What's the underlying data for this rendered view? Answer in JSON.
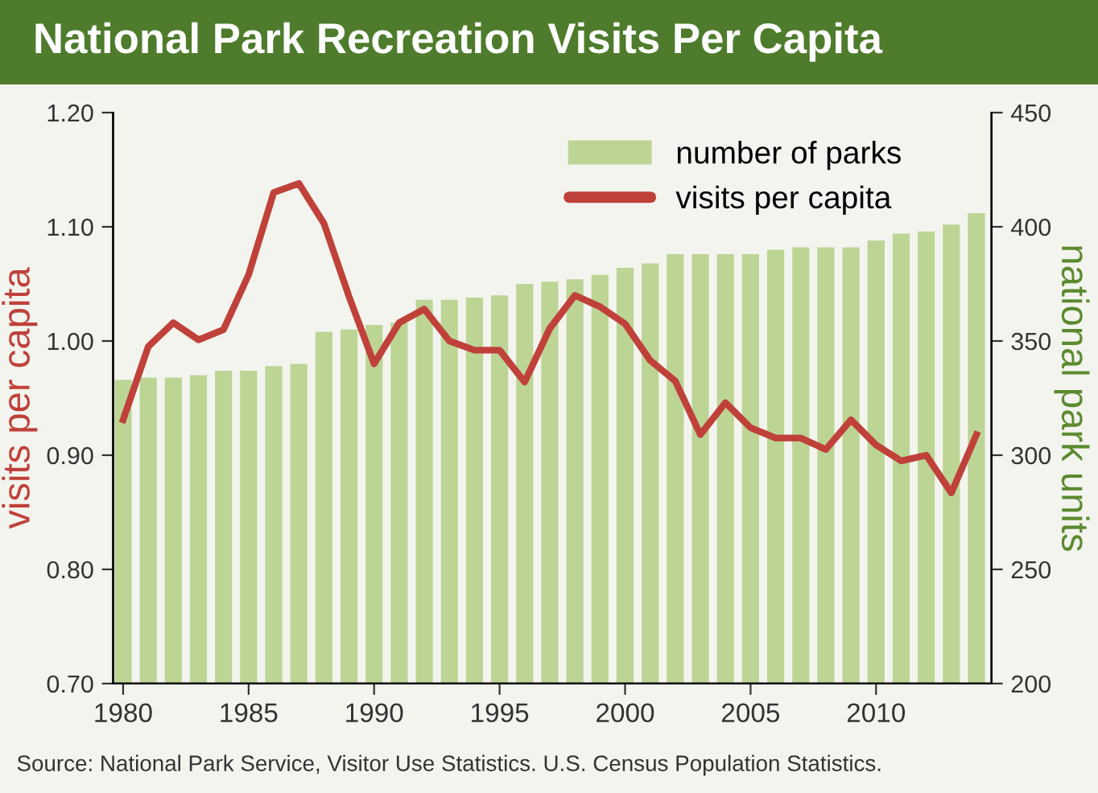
{
  "chart_data": {
    "type": "bar",
    "title": "National Park Recreation Visits Per Capita",
    "ylabel": "visits per capita",
    "y2label": "national park units",
    "x": [
      1980,
      1981,
      1982,
      1983,
      1984,
      1985,
      1986,
      1987,
      1988,
      1989,
      1990,
      1991,
      1992,
      1993,
      1994,
      1995,
      1996,
      1997,
      1998,
      1999,
      2000,
      2001,
      2002,
      2003,
      2004,
      2005,
      2006,
      2007,
      2008,
      2009,
      2010,
      2011,
      2012,
      2013,
      2014
    ],
    "series": [
      {
        "name": "number of parks",
        "axis": "y2",
        "color": "#bcd595",
        "values": [
          333,
          334,
          334,
          335,
          337,
          337,
          339,
          340,
          354,
          355,
          357,
          358,
          368,
          368,
          369,
          370,
          375,
          376,
          377,
          379,
          382,
          384,
          388,
          388,
          388,
          388,
          390,
          391,
          391,
          391,
          394,
          397,
          398,
          401,
          406
        ]
      },
      {
        "name": "visits per capita",
        "type": "line",
        "color": "#c0413a",
        "values": [
          0.931,
          0.995,
          1.016,
          1.001,
          1.01,
          1.058,
          1.13,
          1.138,
          1.103,
          1.039,
          0.98,
          1.016,
          1.028,
          1.0,
          0.992,
          0.992,
          0.964,
          1.011,
          1.04,
          1.03,
          1.015,
          0.983,
          0.965,
          0.918,
          0.946,
          0.924,
          0.915,
          0.915,
          0.905,
          0.931,
          0.909,
          0.895,
          0.9,
          0.867,
          0.918
        ]
      }
    ],
    "xlim": [
      1979.6,
      2014.6
    ],
    "xticks": [
      1980,
      1985,
      1990,
      1995,
      2000,
      2005,
      2010
    ],
    "ylim": [
      0.7,
      1.2
    ],
    "yticks": [
      {
        "value": 0.7,
        "label": "0.70"
      },
      {
        "value": 0.8,
        "label": "0.80"
      },
      {
        "value": 0.9,
        "label": "0.90"
      },
      {
        "value": 1.0,
        "label": "1.00"
      },
      {
        "value": 1.1,
        "label": "1.10"
      },
      {
        "value": 1.2,
        "label": "1.20"
      }
    ],
    "y2lim": [
      200,
      450
    ],
    "y2ticks": [
      200,
      250,
      300,
      350,
      400,
      450
    ],
    "grid": false,
    "legend": "top right",
    "marker": "none",
    "line_style": "solid",
    "annotations": [
      "Source: National Park Service, Visitor Use Statistics. U.S. Census Population Statistics."
    ]
  }
}
